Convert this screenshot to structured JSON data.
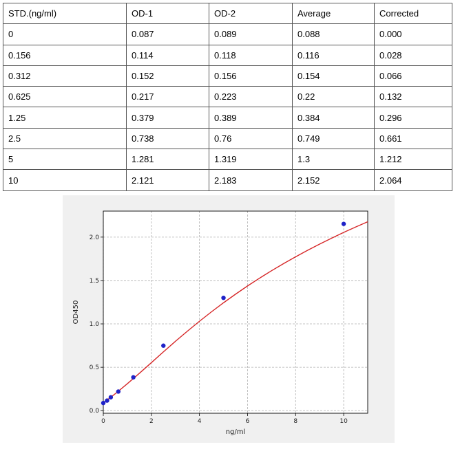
{
  "table": {
    "headers": [
      "STD.(ng/ml)",
      "OD-1",
      "OD-2",
      "Average",
      "Corrected"
    ],
    "rows": [
      [
        "0",
        "0.087",
        "0.089",
        "0.088",
        "0.000"
      ],
      [
        "0.156",
        "0.114",
        "0.118",
        "0.116",
        "0.028"
      ],
      [
        "0.312",
        "0.152",
        "0.156",
        "0.154",
        "0.066"
      ],
      [
        "0.625",
        "0.217",
        "0.223",
        "0.22",
        "0.132"
      ],
      [
        "1.25",
        "0.379",
        "0.389",
        "0.384",
        "0.296"
      ],
      [
        "2.5",
        "0.738",
        "0.76",
        "0.749",
        "0.661"
      ],
      [
        "5",
        "1.281",
        "1.319",
        "1.3",
        "1.212"
      ],
      [
        "10",
        "2.121",
        "2.183",
        "2.152",
        "2.064"
      ]
    ]
  },
  "chart_data": {
    "type": "scatter",
    "xlabel": "ng/ml",
    "ylabel": "OD450",
    "xlim": [
      0,
      11
    ],
    "ylim": [
      -0.03,
      2.3
    ],
    "xticks": [
      0,
      2,
      4,
      6,
      8,
      10
    ],
    "yticks": [
      0.0,
      0.5,
      1.0,
      1.5,
      2.0
    ],
    "grid": true,
    "points": {
      "x": [
        0,
        0.156,
        0.312,
        0.625,
        1.25,
        2.5,
        5,
        10
      ],
      "y": [
        0.088,
        0.116,
        0.154,
        0.22,
        0.384,
        0.749,
        1.3,
        2.152
      ]
    },
    "fit_curve": {
      "x": [
        0,
        0.5,
        1,
        1.5,
        2,
        2.5,
        3,
        3.5,
        4,
        4.5,
        5,
        5.5,
        6,
        6.5,
        7,
        7.5,
        8,
        8.5,
        9,
        9.5,
        10,
        10.5,
        11
      ],
      "y": [
        0.088,
        0.195,
        0.31,
        0.43,
        0.553,
        0.677,
        0.799,
        0.916,
        1.03,
        1.139,
        1.243,
        1.342,
        1.437,
        1.527,
        1.613,
        1.695,
        1.773,
        1.848,
        1.92,
        1.988,
        2.054,
        2.117,
        2.177
      ]
    },
    "colors": {
      "points": "#1f22c8",
      "curve": "#d62728",
      "grid": "#b0b0b0",
      "panel": "#f0f0f0",
      "plot_bg": "#ffffff"
    }
  }
}
